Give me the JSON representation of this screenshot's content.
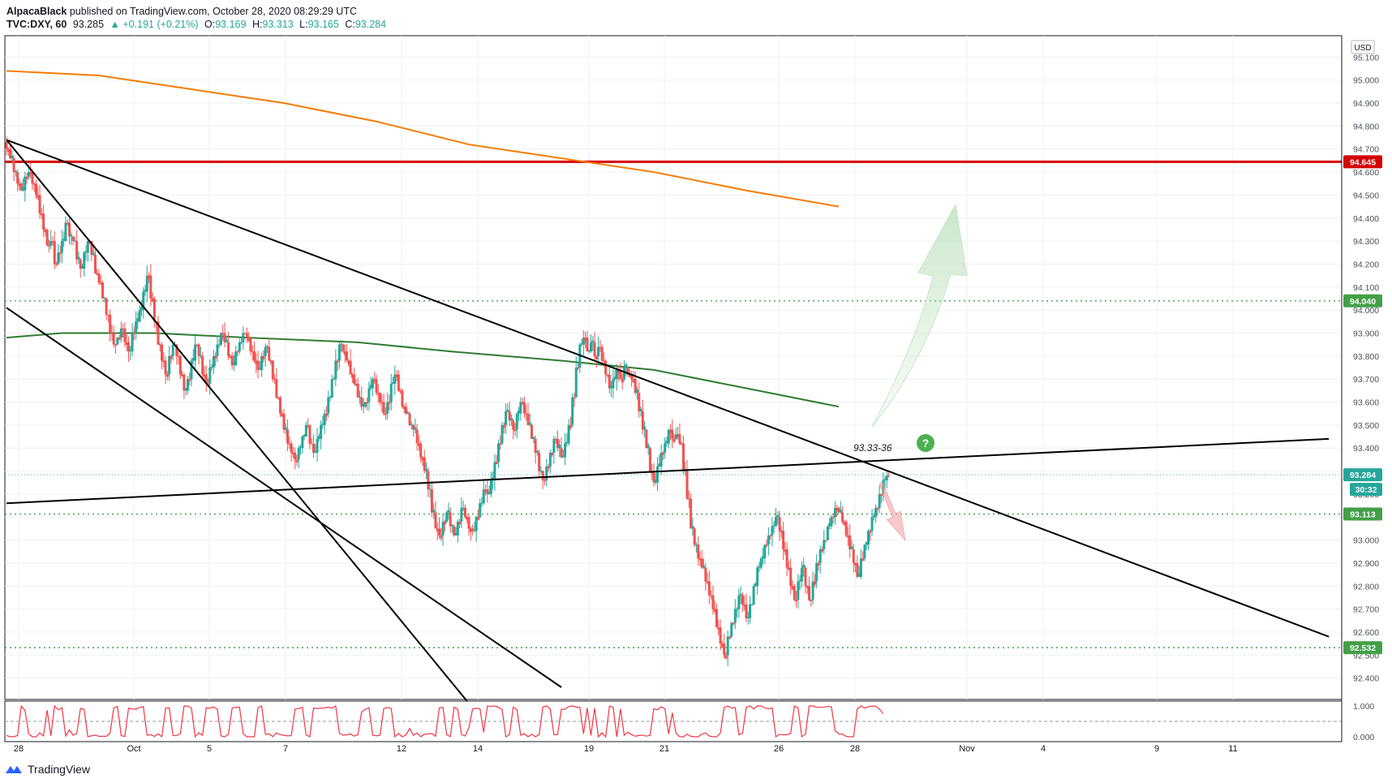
{
  "header": {
    "author": "AlpacaBlack",
    "published": "published on TradingView.com, October 28, 2020 08:29:29 UTC",
    "symbol": "TVC:DXY, 60",
    "last": "93.285",
    "change": "+0.191 (+0.21%)",
    "o_label": "O:",
    "o": "93.169",
    "h_label": "H:",
    "h": "93.313",
    "l_label": "L:",
    "l": "93.165",
    "c_label": "C:",
    "c": "93.284"
  },
  "footer": {
    "brand": "TradingView"
  },
  "currency_badge": "USD",
  "annotation": "93.33-36",
  "colors": {
    "up": "#26a69a",
    "down": "#ef5350",
    "ma_orange": "#f57c00",
    "ma_green": "#2e7d32",
    "resistance_red": "#d50000",
    "level_green": "#43a047",
    "rsi": "#f23645",
    "question_badge": "#4caf50"
  },
  "chart_data": {
    "type": "candlestick",
    "timeframe": "60",
    "ylim": [
      92.3,
      95.2
    ],
    "y_ticks": [
      "95.100",
      "95.000",
      "94.900",
      "94.800",
      "94.700",
      "94.600",
      "94.500",
      "94.400",
      "94.300",
      "94.200",
      "94.100",
      "94.000",
      "93.900",
      "93.800",
      "93.700",
      "93.600",
      "93.500",
      "93.400",
      "93.300",
      "93.200",
      "93.100",
      "93.000",
      "92.900",
      "92.800",
      "92.700",
      "92.600",
      "92.500",
      "92.400"
    ],
    "x_ticks": [
      "28",
      "Oct",
      "5",
      "7",
      "12",
      "14",
      "19",
      "21",
      "26",
      "28",
      "Nov",
      "4",
      "9",
      "11"
    ],
    "price_labels": [
      {
        "value": 94.645,
        "text": "94.645",
        "color": "#d50000"
      },
      {
        "value": 94.04,
        "text": "94.040",
        "color": "#43a047"
      },
      {
        "value": 93.284,
        "text": "93.284",
        "color": "#26a69a"
      },
      {
        "value": 93.113,
        "text": "93.113",
        "color": "#43a047"
      },
      {
        "value": 92.532,
        "text": "92.532",
        "color": "#43a047"
      }
    ],
    "countdown": "30:32",
    "rsi_ticks": [
      "1.000",
      "0.000"
    ],
    "closes": [
      94.7,
      94.66,
      94.6,
      94.55,
      94.52,
      94.58,
      94.6,
      94.55,
      94.5,
      94.42,
      94.35,
      94.28,
      94.3,
      94.2,
      94.25,
      94.3,
      94.38,
      94.32,
      94.3,
      94.22,
      94.18,
      94.25,
      94.3,
      94.24,
      94.16,
      94.12,
      94.05,
      93.98,
      93.9,
      93.85,
      93.88,
      93.92,
      93.86,
      93.82,
      93.9,
      93.95,
      94.0,
      94.08,
      94.15,
      94.05,
      93.95,
      93.85,
      93.78,
      93.72,
      93.8,
      93.85,
      93.8,
      93.72,
      93.65,
      93.7,
      93.78,
      93.85,
      93.8,
      93.72,
      93.68,
      93.75,
      93.8,
      93.85,
      93.9,
      93.86,
      93.8,
      93.76,
      93.82,
      93.86,
      93.9,
      93.88,
      93.82,
      93.78,
      93.74,
      93.8,
      93.84,
      93.78,
      93.7,
      93.62,
      93.55,
      93.48,
      93.42,
      93.38,
      93.35,
      93.4,
      93.45,
      93.5,
      93.42,
      93.38,
      93.44,
      93.5,
      93.55,
      93.62,
      93.7,
      93.78,
      93.85,
      93.82,
      93.78,
      93.72,
      93.68,
      93.62,
      93.58,
      93.6,
      93.66,
      93.7,
      93.64,
      93.6,
      93.55,
      93.6,
      93.68,
      93.72,
      93.65,
      93.58,
      93.55,
      93.5,
      93.48,
      93.42,
      93.36,
      93.3,
      93.22,
      93.12,
      93.05,
      93.02,
      93.08,
      93.12,
      93.06,
      93.02,
      93.08,
      93.14,
      93.1,
      93.05,
      93.04,
      93.1,
      93.16,
      93.22,
      93.2,
      93.26,
      93.34,
      93.42,
      93.5,
      93.56,
      93.52,
      93.48,
      93.55,
      93.6,
      93.55,
      93.5,
      93.44,
      93.38,
      93.3,
      93.26,
      93.32,
      93.38,
      93.44,
      93.4,
      93.36,
      93.42,
      93.5,
      93.62,
      93.75,
      93.85,
      93.88,
      93.82,
      93.86,
      93.8,
      93.84,
      93.78,
      93.72,
      93.66,
      93.7,
      93.74,
      93.7,
      93.75,
      93.72,
      93.7,
      93.64,
      93.56,
      93.48,
      93.4,
      93.3,
      93.25,
      93.32,
      93.38,
      93.42,
      93.48,
      93.44,
      93.46,
      93.42,
      93.3,
      93.18,
      93.05,
      92.98,
      92.92,
      92.88,
      92.82,
      92.76,
      92.7,
      92.62,
      92.55,
      92.5,
      92.58,
      92.64,
      92.7,
      92.76,
      92.72,
      92.66,
      92.72,
      92.8,
      92.88,
      92.92,
      92.98,
      93.02,
      93.06,
      93.1,
      93.04,
      92.96,
      92.88,
      92.8,
      92.74,
      92.82,
      92.88,
      92.8,
      92.74,
      92.82,
      92.9,
      92.96,
      93.0,
      93.06,
      93.1,
      93.14,
      93.12,
      93.08,
      93.02,
      92.96,
      92.9,
      92.84,
      92.92,
      92.98,
      93.04,
      93.1,
      93.14,
      93.2,
      93.26,
      93.28
    ],
    "ma_orange": [
      [
        0,
        95.04
      ],
      [
        50,
        95.02
      ],
      [
        100,
        94.96
      ],
      [
        150,
        94.9
      ],
      [
        200,
        94.82
      ],
      [
        250,
        94.72
      ],
      [
        300,
        94.66
      ],
      [
        350,
        94.6
      ],
      [
        400,
        94.52
      ],
      [
        450,
        94.45
      ]
    ],
    "ma_green": [
      [
        0,
        93.88
      ],
      [
        30,
        93.9
      ],
      [
        80,
        93.9
      ],
      [
        130,
        93.88
      ],
      [
        190,
        93.86
      ],
      [
        240,
        93.82
      ],
      [
        300,
        93.78
      ],
      [
        350,
        93.74
      ],
      [
        400,
        93.66
      ],
      [
        450,
        93.58
      ]
    ],
    "trendlines": [
      {
        "x1": 0,
        "y1": 94.74,
        "x2": 715,
        "y2": 92.58
      },
      {
        "x1": 0,
        "y1": 94.74,
        "x2": 300,
        "y2": 91.8
      },
      {
        "x1": 0,
        "y1": 94.01,
        "x2": 300,
        "y2": 92.36
      },
      {
        "x1": 0,
        "y1": 93.16,
        "x2": 715,
        "y2": 93.44
      }
    ],
    "horizontal_levels": [
      {
        "value": 94.645,
        "style": "solid",
        "color": "#d50000"
      },
      {
        "value": 94.04,
        "style": "dotted",
        "color": "#43a047"
      },
      {
        "value": 93.113,
        "style": "dotted",
        "color": "#43a047"
      },
      {
        "value": 92.532,
        "style": "dotted",
        "color": "#43a047"
      },
      {
        "value": 93.284,
        "style": "dotted-thin",
        "color": "#26a69a"
      }
    ]
  }
}
